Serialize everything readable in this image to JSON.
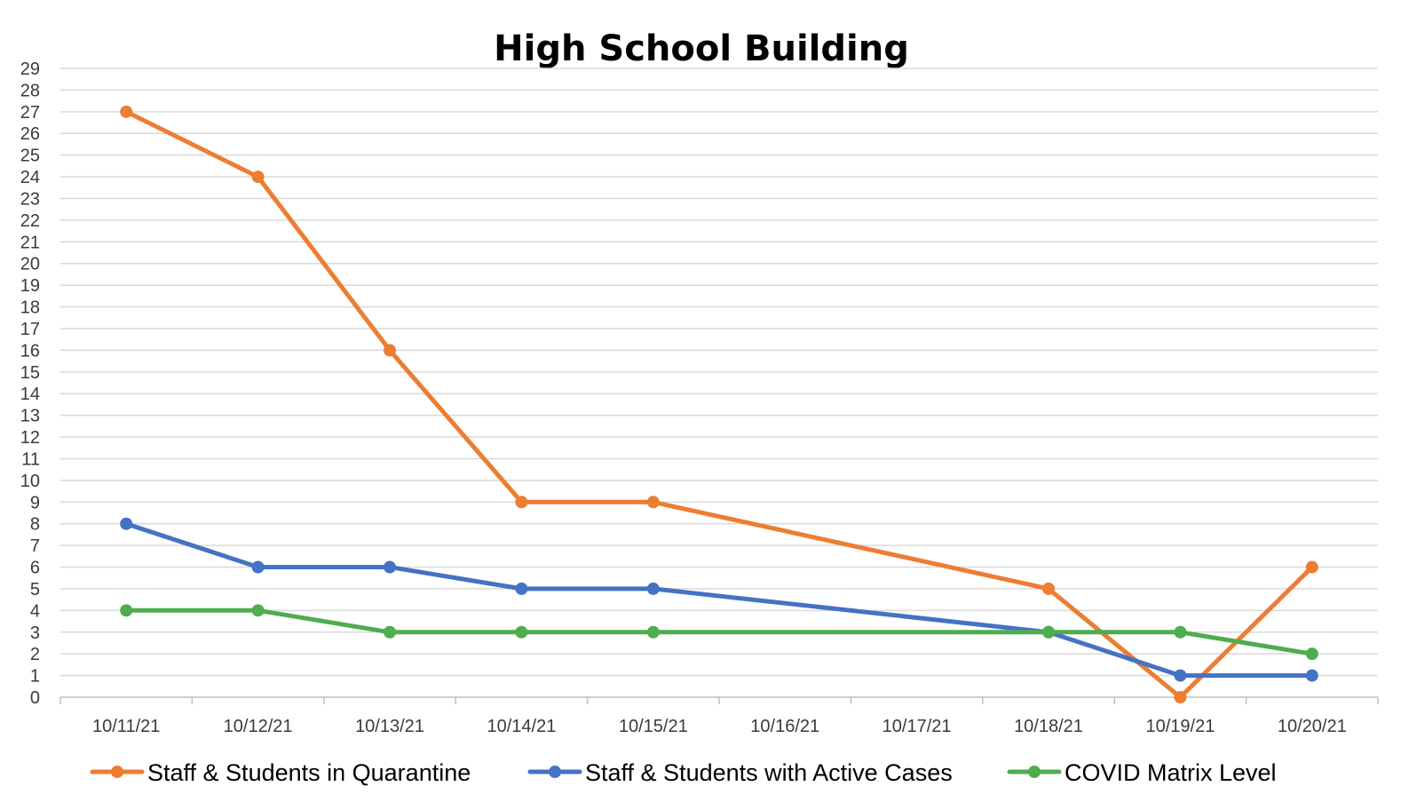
{
  "chart_data": {
    "type": "line",
    "title": "High School Building",
    "xlabel": "",
    "ylabel": "",
    "categories": [
      "10/11/21",
      "10/12/21",
      "10/13/21",
      "10/14/21",
      "10/15/21",
      "10/16/21",
      "10/17/21",
      "10/18/21",
      "10/19/21",
      "10/20/21"
    ],
    "ylim": [
      0,
      29
    ],
    "ytick_step": 1,
    "grid": true,
    "legend_position": "bottom",
    "series": [
      {
        "name": "Staff & Students in Quarantine",
        "color": "#ED7D31",
        "values": [
          27,
          24,
          16,
          9,
          9,
          null,
          null,
          5,
          0,
          6
        ]
      },
      {
        "name": "Staff & Students with Active Cases",
        "color": "#4472C4",
        "values": [
          8,
          6,
          6,
          5,
          5,
          null,
          null,
          3,
          1,
          1
        ]
      },
      {
        "name": "COVID Matrix Level",
        "color": "#4EAD4E",
        "values": [
          4,
          4,
          3,
          3,
          3,
          null,
          null,
          3,
          3,
          2
        ]
      }
    ]
  }
}
